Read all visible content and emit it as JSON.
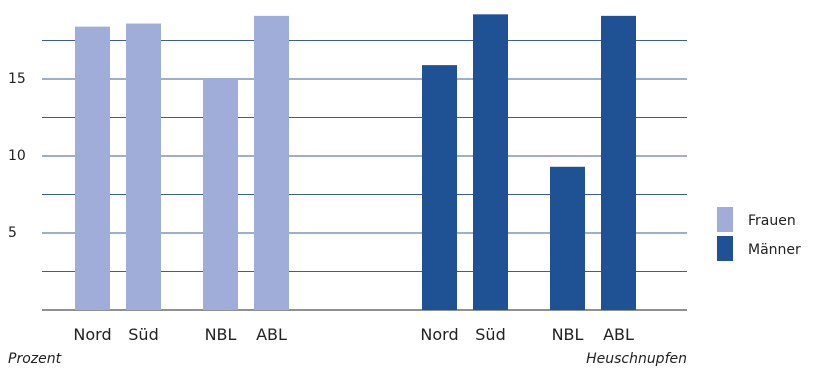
{
  "chart_data": {
    "type": "bar",
    "categories": [
      "Nord",
      "Süd",
      "NBL",
      "ABL"
    ],
    "groups": [
      {
        "name": "",
        "series": "Frauen",
        "values": [
          18.4,
          18.6,
          15.0,
          19.1
        ]
      },
      {
        "name": "Heuschnupfen",
        "series": "Männer",
        "values": [
          15.9,
          19.2,
          9.3,
          19.1
        ]
      }
    ],
    "series": [
      {
        "name": "Frauen",
        "color": "#9fadd8"
      },
      {
        "name": "Männer",
        "color": "#1f5294"
      }
    ],
    "yticks": [
      5,
      10,
      15
    ],
    "ylim": [
      0,
      20
    ],
    "ylabel": "Prozent",
    "grid": true,
    "legend_position": "right"
  },
  "captions": {
    "ylabel": "Prozent",
    "group_label": "Heuschnupfen"
  },
  "legend": [
    {
      "label": "Frauen",
      "color": "#9fadd8"
    },
    {
      "label": "Männer",
      "color": "#1f5294"
    }
  ]
}
